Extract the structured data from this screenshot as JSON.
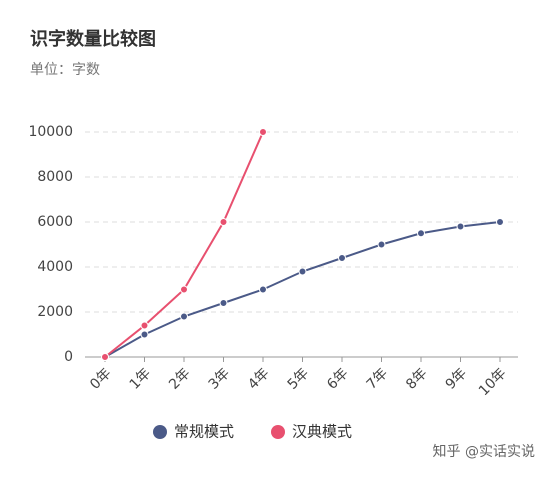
{
  "chart_data": {
    "type": "line",
    "title": "识字数量比较图",
    "subtitle": "单位：字数",
    "categories": [
      "0年",
      "1年",
      "2年",
      "3年",
      "4年",
      "5年",
      "6年",
      "7年",
      "8年",
      "9年",
      "10年"
    ],
    "series": [
      {
        "name": "常规模式",
        "color": "#4b5a88",
        "values": [
          0,
          1000,
          1800,
          2400,
          3000,
          3800,
          4400,
          5000,
          5500,
          5800,
          6000
        ]
      },
      {
        "name": "汉典模式",
        "color": "#e8506f",
        "values": [
          0,
          1400,
          3000,
          6000,
          10000,
          null,
          null,
          null,
          null,
          null,
          null
        ]
      }
    ],
    "ylim": [
      0,
      10000
    ],
    "yticks": [
      0,
      2000,
      4000,
      6000,
      8000,
      10000
    ],
    "grid": true,
    "watermark": "知乎 @实话实说"
  }
}
